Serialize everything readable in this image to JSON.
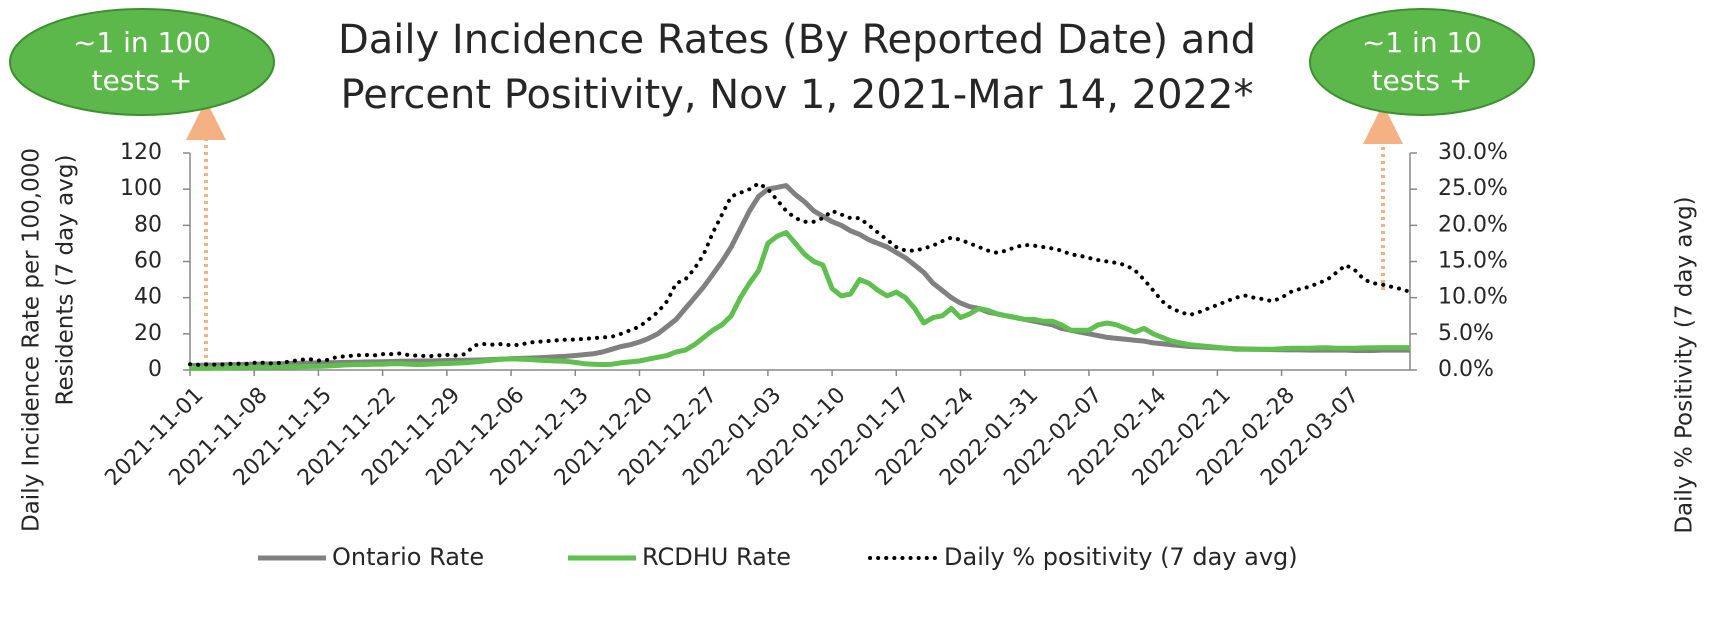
{
  "chart_data": {
    "type": "line",
    "title": [
      "Daily Incidence Rates (By Reported Date) and",
      "Percent Positivity, Nov 1, 2021-Mar 14, 2022*"
    ],
    "ylabel": [
      "Daily Incidence Rate per 100,000",
      "Residents (7 day avg)"
    ],
    "y2label": "Daily % Positivity (7 day avg)",
    "annotations": [
      {
        "lines": [
          "~1 in 100",
          "tests +"
        ]
      },
      {
        "lines": [
          "~1 in 10",
          "tests +"
        ]
      }
    ],
    "categories": [
      "2021-11-01",
      null,
      null,
      null,
      null,
      null,
      null,
      "2021-11-08",
      null,
      null,
      null,
      null,
      null,
      null,
      "2021-11-15",
      null,
      null,
      null,
      null,
      null,
      null,
      "2021-11-22",
      null,
      null,
      null,
      null,
      null,
      null,
      "2021-11-29",
      null,
      null,
      null,
      null,
      null,
      null,
      "2021-12-06",
      null,
      null,
      null,
      null,
      null,
      null,
      "2021-12-13",
      null,
      null,
      null,
      null,
      null,
      null,
      "2021-12-20",
      null,
      null,
      null,
      null,
      null,
      null,
      "2021-12-27",
      null,
      null,
      null,
      null,
      null,
      null,
      "2022-01-03",
      null,
      null,
      null,
      null,
      null,
      null,
      "2022-01-10",
      null,
      null,
      null,
      null,
      null,
      null,
      "2022-01-17",
      null,
      null,
      null,
      null,
      null,
      null,
      "2022-01-24",
      null,
      null,
      null,
      null,
      null,
      null,
      "2022-01-31",
      null,
      null,
      null,
      null,
      null,
      null,
      "2022-02-07",
      null,
      null,
      null,
      null,
      null,
      null,
      "2022-02-14",
      null,
      null,
      null,
      null,
      null,
      null,
      "2022-02-21",
      null,
      null,
      null,
      null,
      null,
      null,
      "2022-02-28",
      null,
      null,
      null,
      null,
      null,
      null,
      "2022-03-07",
      null,
      null,
      null,
      null,
      null,
      null,
      null
    ],
    "ylim": [
      0,
      120
    ],
    "yticks": [
      0,
      20,
      40,
      60,
      80,
      100,
      120
    ],
    "y2lim": [
      0,
      30
    ],
    "y2ticks": [
      {
        "value": 0,
        "label": "0.0%"
      },
      {
        "value": 5,
        "label": "5.0%"
      },
      {
        "value": 10,
        "label": "10.0%"
      },
      {
        "value": 15,
        "label": "15.0%"
      },
      {
        "value": 20,
        "label": "20.0%"
      },
      {
        "value": 25,
        "label": "25.0%"
      },
      {
        "value": 30,
        "label": "30.0%"
      }
    ],
    "legend": "bottom",
    "series": [
      {
        "name": "Ontario Rate",
        "color": "#808080",
        "style": "solid",
        "values": [
          2.5,
          2.6,
          2.7,
          2.8,
          2.9,
          3.0,
          3.1,
          3.2,
          3.3,
          3.4,
          3.5,
          3.6,
          3.7,
          3.8,
          3.9,
          4.0,
          4.1,
          4.2,
          4.3,
          4.4,
          4.5,
          4.6,
          4.7,
          4.8,
          4.9,
          5.0,
          5.0,
          5.1,
          5.2,
          5.3,
          5.4,
          5.5,
          5.6,
          5.8,
          6.0,
          6.2,
          6.4,
          6.6,
          6.8,
          7.0,
          7.3,
          7.6,
          8,
          8.5,
          9,
          10,
          11.5,
          13,
          14,
          15.5,
          17.5,
          20,
          24,
          28,
          34,
          40,
          46,
          53,
          60,
          68,
          78,
          88,
          96,
          100,
          101,
          102,
          97,
          93,
          88,
          85,
          82,
          80,
          77,
          75,
          72,
          70,
          68,
          65,
          62,
          58,
          54,
          48,
          44,
          40,
          37,
          35,
          34,
          32,
          31,
          30,
          29,
          28,
          27,
          26,
          25,
          23,
          22,
          21,
          20,
          19,
          18,
          17.5,
          17,
          16.5,
          16,
          15,
          14.5,
          14,
          13.5,
          13,
          12.8,
          12.5,
          12.2,
          12,
          11.8,
          11.6,
          11.5,
          11.4,
          11.3,
          11.2,
          11.1,
          11.1,
          11.0,
          11.0,
          11.0,
          11.0,
          11,
          10.8,
          10.8,
          10.8,
          11,
          11,
          11,
          11
        ]
      },
      {
        "name": "RCDHU Rate",
        "color": "#5fbf4f",
        "style": "solid",
        "values": [
          1,
          1,
          1,
          1.2,
          1.2,
          1.3,
          1.3,
          1.4,
          1.5,
          1.5,
          1.6,
          1.7,
          1.8,
          2,
          2,
          2.2,
          2.5,
          2.8,
          3,
          3,
          3.2,
          3.2,
          3.5,
          3.5,
          3.2,
          3,
          3.2,
          3.5,
          3.6,
          3.8,
          4,
          4.5,
          5,
          5.5,
          6,
          6.2,
          6,
          5.8,
          5.5,
          5.2,
          5,
          4.8,
          4.2,
          3.5,
          3.2,
          3,
          3.2,
          4,
          4.5,
          5,
          6,
          7,
          8,
          10,
          11,
          14,
          18,
          22,
          25,
          30,
          40,
          48,
          55,
          70,
          74,
          76,
          70,
          64,
          60,
          58,
          45,
          41,
          42,
          50,
          48,
          44,
          41,
          43,
          40,
          34,
          26,
          29,
          30,
          34,
          29,
          31,
          34,
          33,
          31,
          30,
          29,
          28,
          28,
          27,
          27,
          25,
          22,
          22,
          22,
          25,
          26,
          25,
          23,
          21,
          23,
          20,
          18,
          16,
          15,
          14,
          13.5,
          13,
          12.5,
          12,
          11.5,
          11.5,
          11.5,
          11.5,
          11.5,
          11.8,
          12,
          12,
          12,
          12.2,
          12.3,
          12,
          12,
          12,
          12.2,
          12.3,
          12.4,
          12.4,
          12.4,
          12.4
        ]
      },
      {
        "name": "Daily % positivity (7 day avg)",
        "color": "#000000",
        "style": "dotted",
        "axis": "y2",
        "values": [
          0.8,
          0.7,
          0.8,
          0.7,
          0.8,
          0.9,
          0.8,
          1,
          1,
          0.9,
          1,
          1.2,
          1.4,
          1.5,
          1.3,
          1.4,
          1.8,
          1.9,
          2,
          2.1,
          2,
          2.2,
          2.2,
          2.3,
          2.0,
          2.0,
          1.9,
          2.0,
          2.1,
          2.0,
          2.2,
          3.4,
          3.6,
          3.5,
          3.6,
          3.4,
          3.5,
          3.8,
          3.9,
          4.0,
          4.1,
          4.2,
          4.2,
          4.3,
          4.4,
          4.5,
          4.6,
          5,
          5.5,
          6,
          7,
          8,
          9.5,
          12,
          12.5,
          14,
          16,
          19,
          21.5,
          24,
          24.5,
          25,
          25.8,
          25,
          23.5,
          22,
          21,
          20.5,
          20.5,
          21,
          22,
          21.5,
          21,
          21,
          20,
          19,
          18,
          17,
          16.5,
          16.5,
          16.8,
          17.2,
          17.8,
          18.3,
          18,
          17.5,
          17,
          16.5,
          16.2,
          16.5,
          17,
          17.3,
          17.2,
          17,
          16.8,
          16.5,
          16,
          15.8,
          15.5,
          15.2,
          15,
          14.8,
          14.5,
          13.8,
          12.5,
          11,
          9.5,
          8.5,
          8,
          7.6,
          8,
          8.5,
          9,
          9.5,
          10,
          10.3,
          10,
          9.8,
          9.5,
          10,
          10.8,
          11.2,
          11.5,
          12,
          12.5,
          13.5,
          14.5,
          13.8,
          12.5,
          12,
          11.8,
          11.5,
          11.2,
          10.8
        ]
      }
    ]
  }
}
